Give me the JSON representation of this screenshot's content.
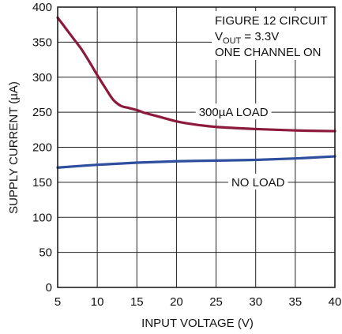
{
  "chart_data": {
    "type": "line",
    "xlabel": "INPUT VOLTAGE (V)",
    "ylabel": "SUPPLY CURRENT (µA)",
    "xlim": [
      5,
      40
    ],
    "ylim": [
      0,
      400
    ],
    "x_ticks": [
      5,
      10,
      15,
      20,
      25,
      30,
      35,
      40
    ],
    "y_ticks": [
      0,
      50,
      100,
      150,
      200,
      250,
      300,
      350,
      400
    ],
    "grid": true,
    "annotations": {
      "line1": "FIGURE 12 CIRCUIT",
      "line2_prefix": "V",
      "line2_sub": "OUT",
      "line2_suffix": " = 3.3V",
      "line3": "ONE CHANNEL ON"
    },
    "series": [
      {
        "name": "300µA LOAD",
        "color": "#8b1a3c",
        "x": [
          5,
          6,
          7,
          8,
          9,
          10,
          11,
          12,
          13,
          14,
          15,
          16,
          17,
          18,
          20,
          22,
          25,
          30,
          35,
          40
        ],
        "y": [
          385,
          370,
          355,
          340,
          322,
          303,
          285,
          268,
          259,
          256,
          253,
          249,
          246,
          243,
          237,
          233,
          229,
          226,
          224,
          223
        ]
      },
      {
        "name": "NO LOAD",
        "color": "#2e4f9e",
        "x": [
          5,
          10,
          15,
          20,
          25,
          30,
          35,
          40
        ],
        "y": [
          171,
          175,
          178,
          180,
          181,
          182,
          184,
          187
        ]
      }
    ]
  }
}
